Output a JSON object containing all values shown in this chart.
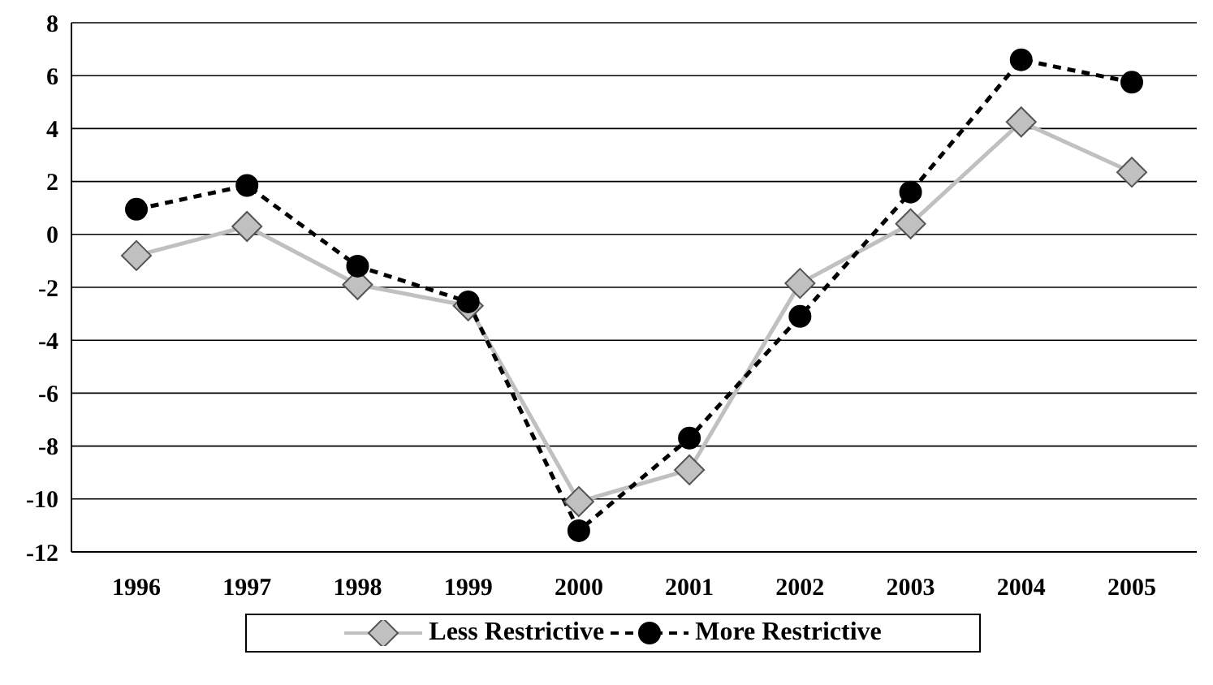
{
  "chart_data": {
    "type": "line",
    "categories": [
      "1996",
      "1997",
      "1998",
      "1999",
      "2000",
      "2001",
      "2002",
      "2003",
      "2004",
      "2005"
    ],
    "series": [
      {
        "name": "Less Restrictive",
        "color": "#c0c0c0",
        "marker": "diamond",
        "line_style": "solid",
        "values": [
          -0.8,
          0.3,
          -1.9,
          -2.7,
          -10.1,
          -8.9,
          -1.85,
          0.4,
          4.25,
          2.35
        ]
      },
      {
        "name": "More Restrictive",
        "color": "#000000",
        "marker": "circle",
        "line_style": "dashed",
        "values": [
          0.95,
          1.85,
          -1.2,
          -2.55,
          -11.2,
          -7.7,
          -3.1,
          1.6,
          6.6,
          5.75
        ]
      }
    ],
    "ylim": [
      -12,
      8
    ],
    "yticks": [
      -12,
      -10,
      -8,
      -6,
      -4,
      -2,
      0,
      2,
      4,
      6,
      8
    ],
    "grid": "y",
    "legend": "bottom"
  }
}
